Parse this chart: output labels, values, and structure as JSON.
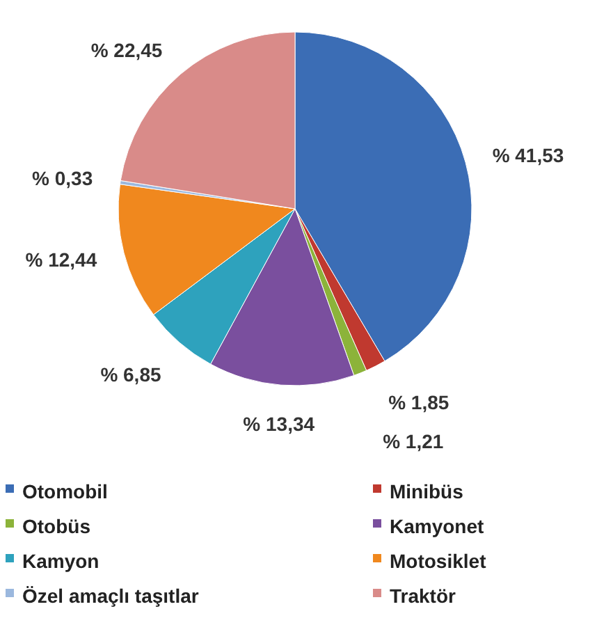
{
  "chart_data": {
    "type": "pie",
    "categories": [
      "Otomobil",
      "Minibüs",
      "Otobüs",
      "Kamyonet",
      "Kamyon",
      "Motosiklet",
      "Özel amaçlı taşıtlar",
      "Traktör"
    ],
    "values": [
      41.53,
      1.85,
      1.21,
      13.34,
      6.85,
      12.44,
      0.33,
      22.45
    ],
    "value_labels": [
      "% 41,53",
      "% 1,85",
      "% 1,21",
      "% 13,34",
      "% 6,85",
      "% 12,44",
      "% 0,33",
      "% 22,45"
    ],
    "colors": [
      "#3b6db5",
      "#c0392f",
      "#8cb33a",
      "#7a4f9e",
      "#2ea2bd",
      "#f0881e",
      "#9bb8de",
      "#d98b89"
    ],
    "legend": "bottom"
  }
}
